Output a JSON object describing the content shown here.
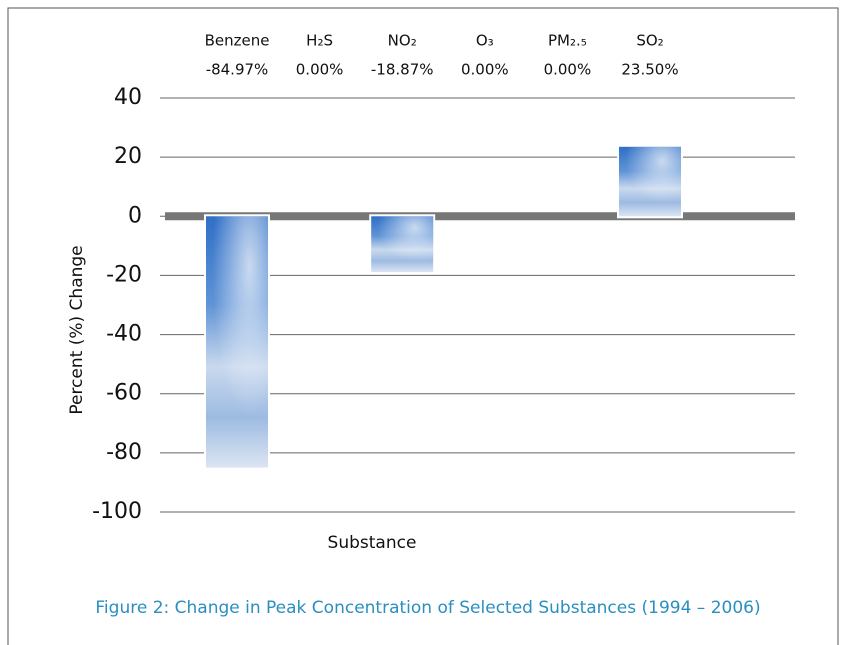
{
  "chart_data": {
    "type": "bar",
    "caption": "Figure 2:  Change in Peak Concentration of Selected Substances (1994 – 2006)",
    "xlabel": "Substance",
    "ylabel": "Percent (%) Change",
    "categories": [
      "Benzene",
      "H₂S",
      "NO₂",
      "O₃",
      "PM₂.₅",
      "SO₂"
    ],
    "values": [
      -84.97,
      0.0,
      -18.87,
      0.0,
      0.0,
      23.5
    ],
    "value_labels": [
      "-84.97%",
      "0.00%",
      "-18.87%",
      "0.00%",
      "0.00%",
      "23.50%"
    ],
    "color": "#3f7fcf",
    "ylim": [
      -100,
      40
    ],
    "yticks": [
      -100,
      -80,
      -60,
      -40,
      -20,
      0,
      20,
      40
    ],
    "grid": true
  }
}
